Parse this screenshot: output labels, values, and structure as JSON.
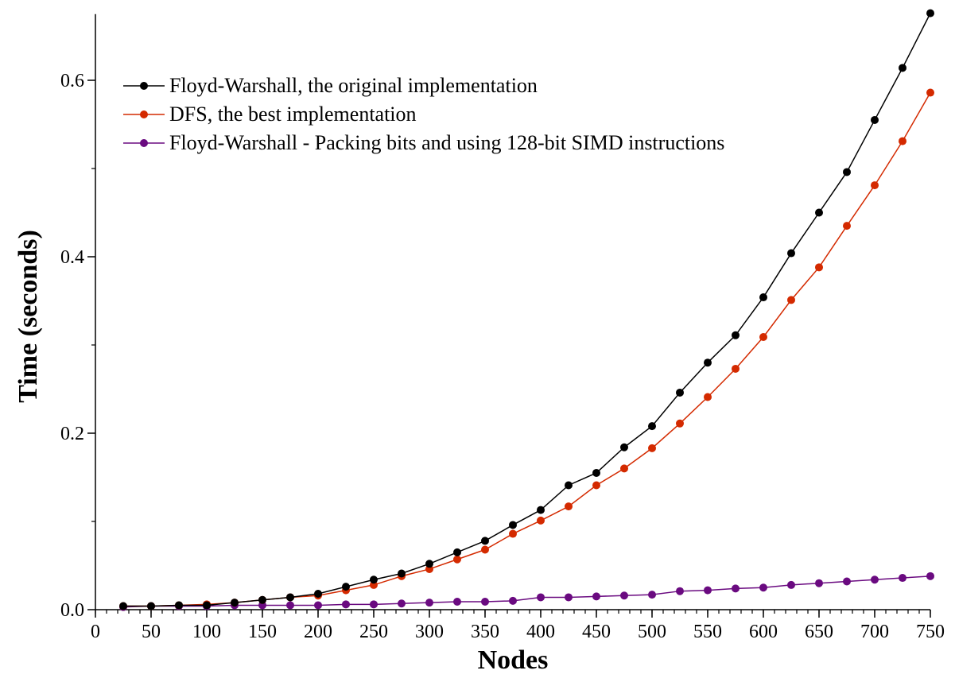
{
  "chart_data": {
    "type": "line",
    "title": "",
    "xlabel": "Nodes",
    "ylabel": "Time (seconds)",
    "xlim": [
      0,
      750
    ],
    "ylim": [
      0,
      0.675
    ],
    "xticks": [
      0,
      50,
      100,
      150,
      200,
      250,
      300,
      350,
      400,
      450,
      500,
      550,
      600,
      650,
      700,
      750
    ],
    "xtick_labels": [
      "0",
      "50",
      "100",
      "150",
      "200",
      "250",
      "300",
      "350",
      "400",
      "450",
      "500",
      "550",
      "600",
      "650",
      "700",
      "750"
    ],
    "yticks": [
      0,
      0.2,
      0.4,
      0.6
    ],
    "ytick_labels": [
      "0.0",
      "0.2",
      "0.4",
      "0.6"
    ],
    "grid": false,
    "legend_position": "top-left",
    "x": [
      25,
      50,
      75,
      100,
      125,
      150,
      175,
      200,
      225,
      250,
      275,
      300,
      325,
      350,
      375,
      400,
      425,
      450,
      475,
      500,
      525,
      550,
      575,
      600,
      625,
      650,
      675,
      700,
      725,
      750
    ],
    "series": [
      {
        "name": "Floyd-Warshall, the original implementation",
        "color": "#000000",
        "values": [
          0.004,
          0.004,
          0.005,
          0.005,
          0.008,
          0.011,
          0.014,
          0.018,
          0.026,
          0.034,
          0.041,
          0.052,
          0.065,
          0.078,
          0.096,
          0.113,
          0.141,
          0.155,
          0.184,
          0.208,
          0.246,
          0.28,
          0.311,
          0.354,
          0.404,
          0.45,
          0.496,
          0.555,
          0.614,
          0.676
        ]
      },
      {
        "name": "DFS, the best implementation",
        "color": "#d42a00",
        "values": [
          0.004,
          0.004,
          0.005,
          0.006,
          0.008,
          0.011,
          0.014,
          0.016,
          0.022,
          0.028,
          0.038,
          0.046,
          0.057,
          0.068,
          0.086,
          0.101,
          0.117,
          0.141,
          0.16,
          0.183,
          0.211,
          0.241,
          0.273,
          0.309,
          0.351,
          0.388,
          0.435,
          0.481,
          0.531,
          0.586
        ]
      },
      {
        "name": "Floyd-Warshall - Packing bits and using 128-bit SIMD instructions",
        "color": "#6a0a80",
        "values": [
          0.003,
          0.004,
          0.004,
          0.004,
          0.005,
          0.005,
          0.005,
          0.005,
          0.006,
          0.006,
          0.007,
          0.008,
          0.009,
          0.009,
          0.01,
          0.014,
          0.014,
          0.015,
          0.016,
          0.017,
          0.021,
          0.022,
          0.024,
          0.025,
          0.028,
          0.03,
          0.032,
          0.034,
          0.036,
          0.038
        ]
      }
    ]
  }
}
